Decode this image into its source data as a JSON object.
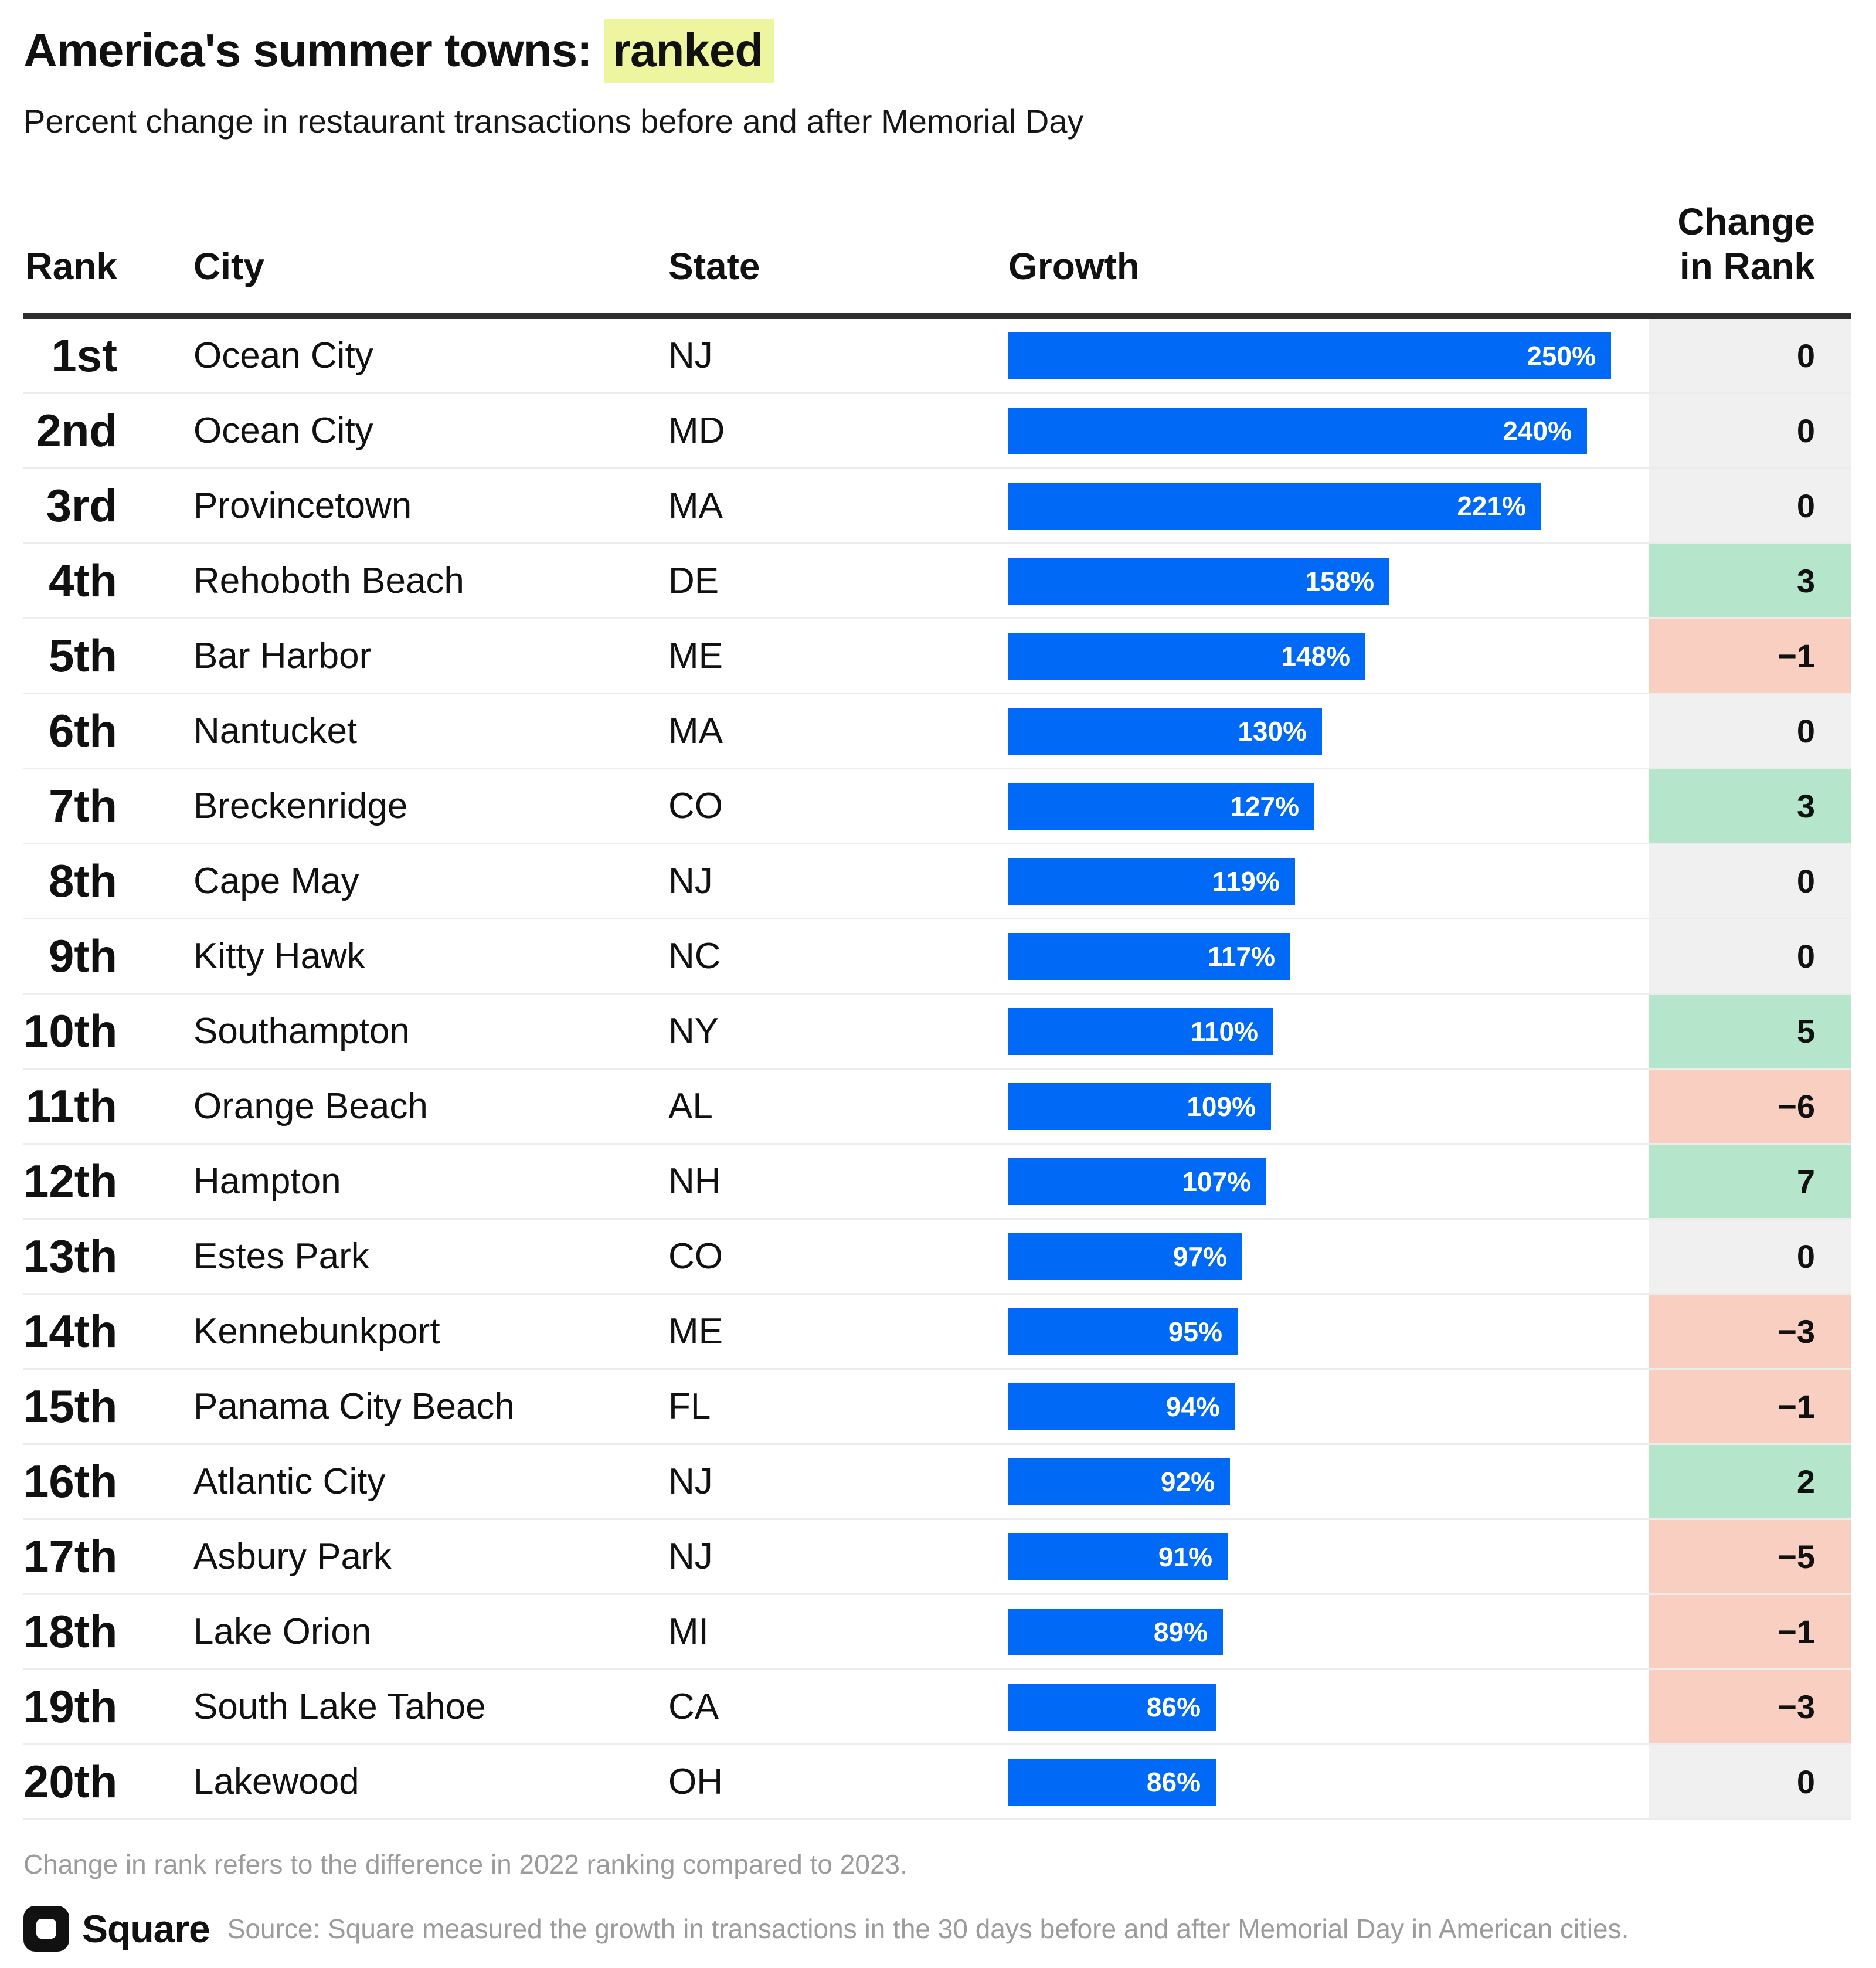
{
  "header": {
    "title_prefix": "America's summer towns: ",
    "title_highlight": "ranked",
    "subtitle": "Percent change in restaurant transactions before and after Memorial Day"
  },
  "table": {
    "columns": {
      "rank": "Rank",
      "city": "City",
      "state": "State",
      "growth": "Growth",
      "change_line1": "Change",
      "change_line2": "in Rank"
    },
    "rows": [
      {
        "rank": "1st",
        "city": "Ocean City",
        "state": "NJ",
        "growth_pct": 250,
        "growth_label": "250%",
        "change": 0,
        "change_label": "0"
      },
      {
        "rank": "2nd",
        "city": "Ocean City",
        "state": "MD",
        "growth_pct": 240,
        "growth_label": "240%",
        "change": 0,
        "change_label": "0"
      },
      {
        "rank": "3rd",
        "city": "Provincetown",
        "state": "MA",
        "growth_pct": 221,
        "growth_label": "221%",
        "change": 0,
        "change_label": "0"
      },
      {
        "rank": "4th",
        "city": "Rehoboth Beach",
        "state": "DE",
        "growth_pct": 158,
        "growth_label": "158%",
        "change": 3,
        "change_label": "3"
      },
      {
        "rank": "5th",
        "city": "Bar Harbor",
        "state": "ME",
        "growth_pct": 148,
        "growth_label": "148%",
        "change": -1,
        "change_label": "−1"
      },
      {
        "rank": "6th",
        "city": "Nantucket",
        "state": "MA",
        "growth_pct": 130,
        "growth_label": "130%",
        "change": 0,
        "change_label": "0"
      },
      {
        "rank": "7th",
        "city": "Breckenridge",
        "state": "CO",
        "growth_pct": 127,
        "growth_label": "127%",
        "change": 3,
        "change_label": "3"
      },
      {
        "rank": "8th",
        "city": "Cape May",
        "state": "NJ",
        "growth_pct": 119,
        "growth_label": "119%",
        "change": 0,
        "change_label": "0"
      },
      {
        "rank": "9th",
        "city": "Kitty Hawk",
        "state": "NC",
        "growth_pct": 117,
        "growth_label": "117%",
        "change": 0,
        "change_label": "0"
      },
      {
        "rank": "10th",
        "city": "Southampton",
        "state": "NY",
        "growth_pct": 110,
        "growth_label": "110%",
        "change": 5,
        "change_label": "5"
      },
      {
        "rank": "11th",
        "city": "Orange Beach",
        "state": "AL",
        "growth_pct": 109,
        "growth_label": "109%",
        "change": -6,
        "change_label": "−6"
      },
      {
        "rank": "12th",
        "city": "Hampton",
        "state": "NH",
        "growth_pct": 107,
        "growth_label": "107%",
        "change": 7,
        "change_label": "7"
      },
      {
        "rank": "13th",
        "city": "Estes Park",
        "state": "CO",
        "growth_pct": 97,
        "growth_label": "97%",
        "change": 0,
        "change_label": "0"
      },
      {
        "rank": "14th",
        "city": "Kennebunkport",
        "state": "ME",
        "growth_pct": 95,
        "growth_label": "95%",
        "change": -3,
        "change_label": "−3"
      },
      {
        "rank": "15th",
        "city": "Panama City Beach",
        "state": "FL",
        "growth_pct": 94,
        "growth_label": "94%",
        "change": -1,
        "change_label": "−1"
      },
      {
        "rank": "16th",
        "city": "Atlantic City",
        "state": "NJ",
        "growth_pct": 92,
        "growth_label": "92%",
        "change": 2,
        "change_label": "2"
      },
      {
        "rank": "17th",
        "city": "Asbury Park",
        "state": "NJ",
        "growth_pct": 91,
        "growth_label": "91%",
        "change": -5,
        "change_label": "−5"
      },
      {
        "rank": "18th",
        "city": "Lake Orion",
        "state": "MI",
        "growth_pct": 89,
        "growth_label": "89%",
        "change": -1,
        "change_label": "−1"
      },
      {
        "rank": "19th",
        "city": "South Lake Tahoe",
        "state": "CA",
        "growth_pct": 86,
        "growth_label": "86%",
        "change": -3,
        "change_label": "−3"
      },
      {
        "rank": "20th",
        "city": "Lakewood",
        "state": "OH",
        "growth_pct": 86,
        "growth_label": "86%",
        "change": 0,
        "change_label": "0"
      }
    ]
  },
  "chart_data": {
    "type": "bar",
    "orientation": "horizontal",
    "title": "America's summer towns: ranked",
    "subtitle": "Percent change in restaurant transactions before and after Memorial Day",
    "categories": [
      "Ocean City, NJ",
      "Ocean City, MD",
      "Provincetown, MA",
      "Rehoboth Beach, DE",
      "Bar Harbor, ME",
      "Nantucket, MA",
      "Breckenridge, CO",
      "Cape May, NJ",
      "Kitty Hawk, NC",
      "Southampton, NY",
      "Orange Beach, AL",
      "Hampton, NH",
      "Estes Park, CO",
      "Kennebunkport, ME",
      "Panama City Beach, FL",
      "Atlantic City, NJ",
      "Asbury Park, NJ",
      "Lake Orion, MI",
      "South Lake Tahoe, CA",
      "Lakewood, OH"
    ],
    "series": [
      {
        "name": "Growth (% change in restaurant transactions)",
        "values": [
          250,
          240,
          221,
          158,
          148,
          130,
          127,
          119,
          117,
          110,
          109,
          107,
          97,
          95,
          94,
          92,
          91,
          89,
          86,
          86
        ]
      },
      {
        "name": "Change in Rank",
        "values": [
          0,
          0,
          0,
          3,
          -1,
          0,
          3,
          0,
          0,
          5,
          -6,
          7,
          0,
          -3,
          -1,
          2,
          -5,
          -1,
          -3,
          0
        ]
      }
    ],
    "value_format": "percent",
    "xlim": [
      0,
      250
    ],
    "grid": false,
    "legend_position": "none"
  },
  "footer": {
    "footnote": "Change in rank refers to the difference in 2022 ranking compared to 2023.",
    "logo_name": "Square",
    "source": "Source: Square measured the growth in transactions in the 30 days before and after Memorial Day in American cities."
  },
  "colors": {
    "bar_blue": "#0069F5",
    "positive_bg": "#B5E6CB",
    "negative_bg": "#F8CFC0",
    "zero_bg": "#F0F0F0",
    "highlight_yellow": "#EDF59E",
    "header_rule": "#2E2E2E",
    "muted_text": "#9B9B9B"
  }
}
